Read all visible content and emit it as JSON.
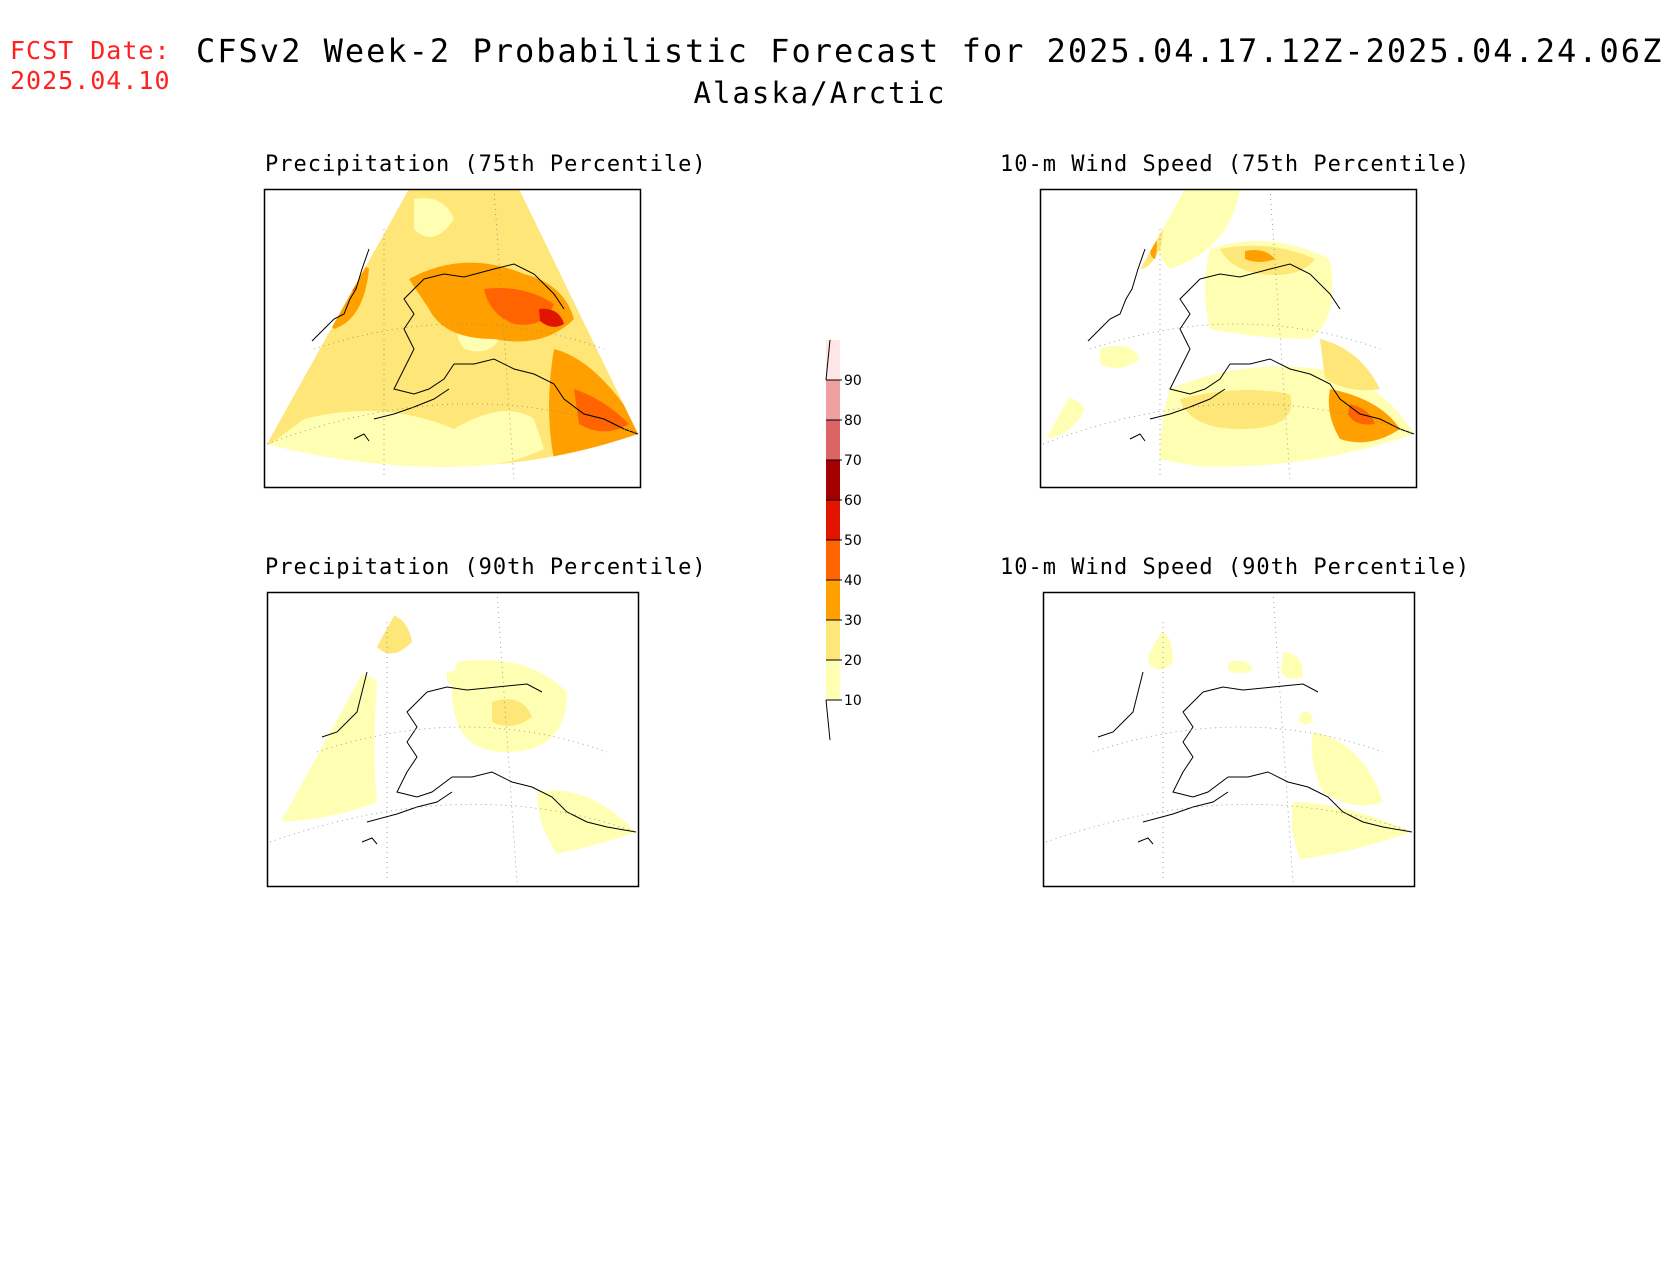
{
  "header": {
    "fcst_label": "FCST Date:",
    "fcst_date": "2025.04.10",
    "title": "CFSv2 Week-2 Probabilistic Forecast for 2025.04.17.12Z-2025.04.24.06Z",
    "subtitle": "Alaska/Arctic"
  },
  "panels": [
    {
      "title": "Precipitation (75th Percentile)"
    },
    {
      "title": "10-m Wind Speed (75th Percentile)"
    },
    {
      "title": "Precipitation (90th Percentile)"
    },
    {
      "title": "10-m Wind Speed (90th Percentile)"
    }
  ],
  "colorbar": {
    "levels": [
      "10",
      "20",
      "30",
      "40",
      "50",
      "60",
      "70",
      "80",
      "90"
    ],
    "colors": [
      "#ffffb4",
      "#ffe678",
      "#ffa000",
      "#ff6400",
      "#e11400",
      "#a50000",
      "#dc6464",
      "#f0a0a0",
      "#ffe6e6"
    ]
  }
}
